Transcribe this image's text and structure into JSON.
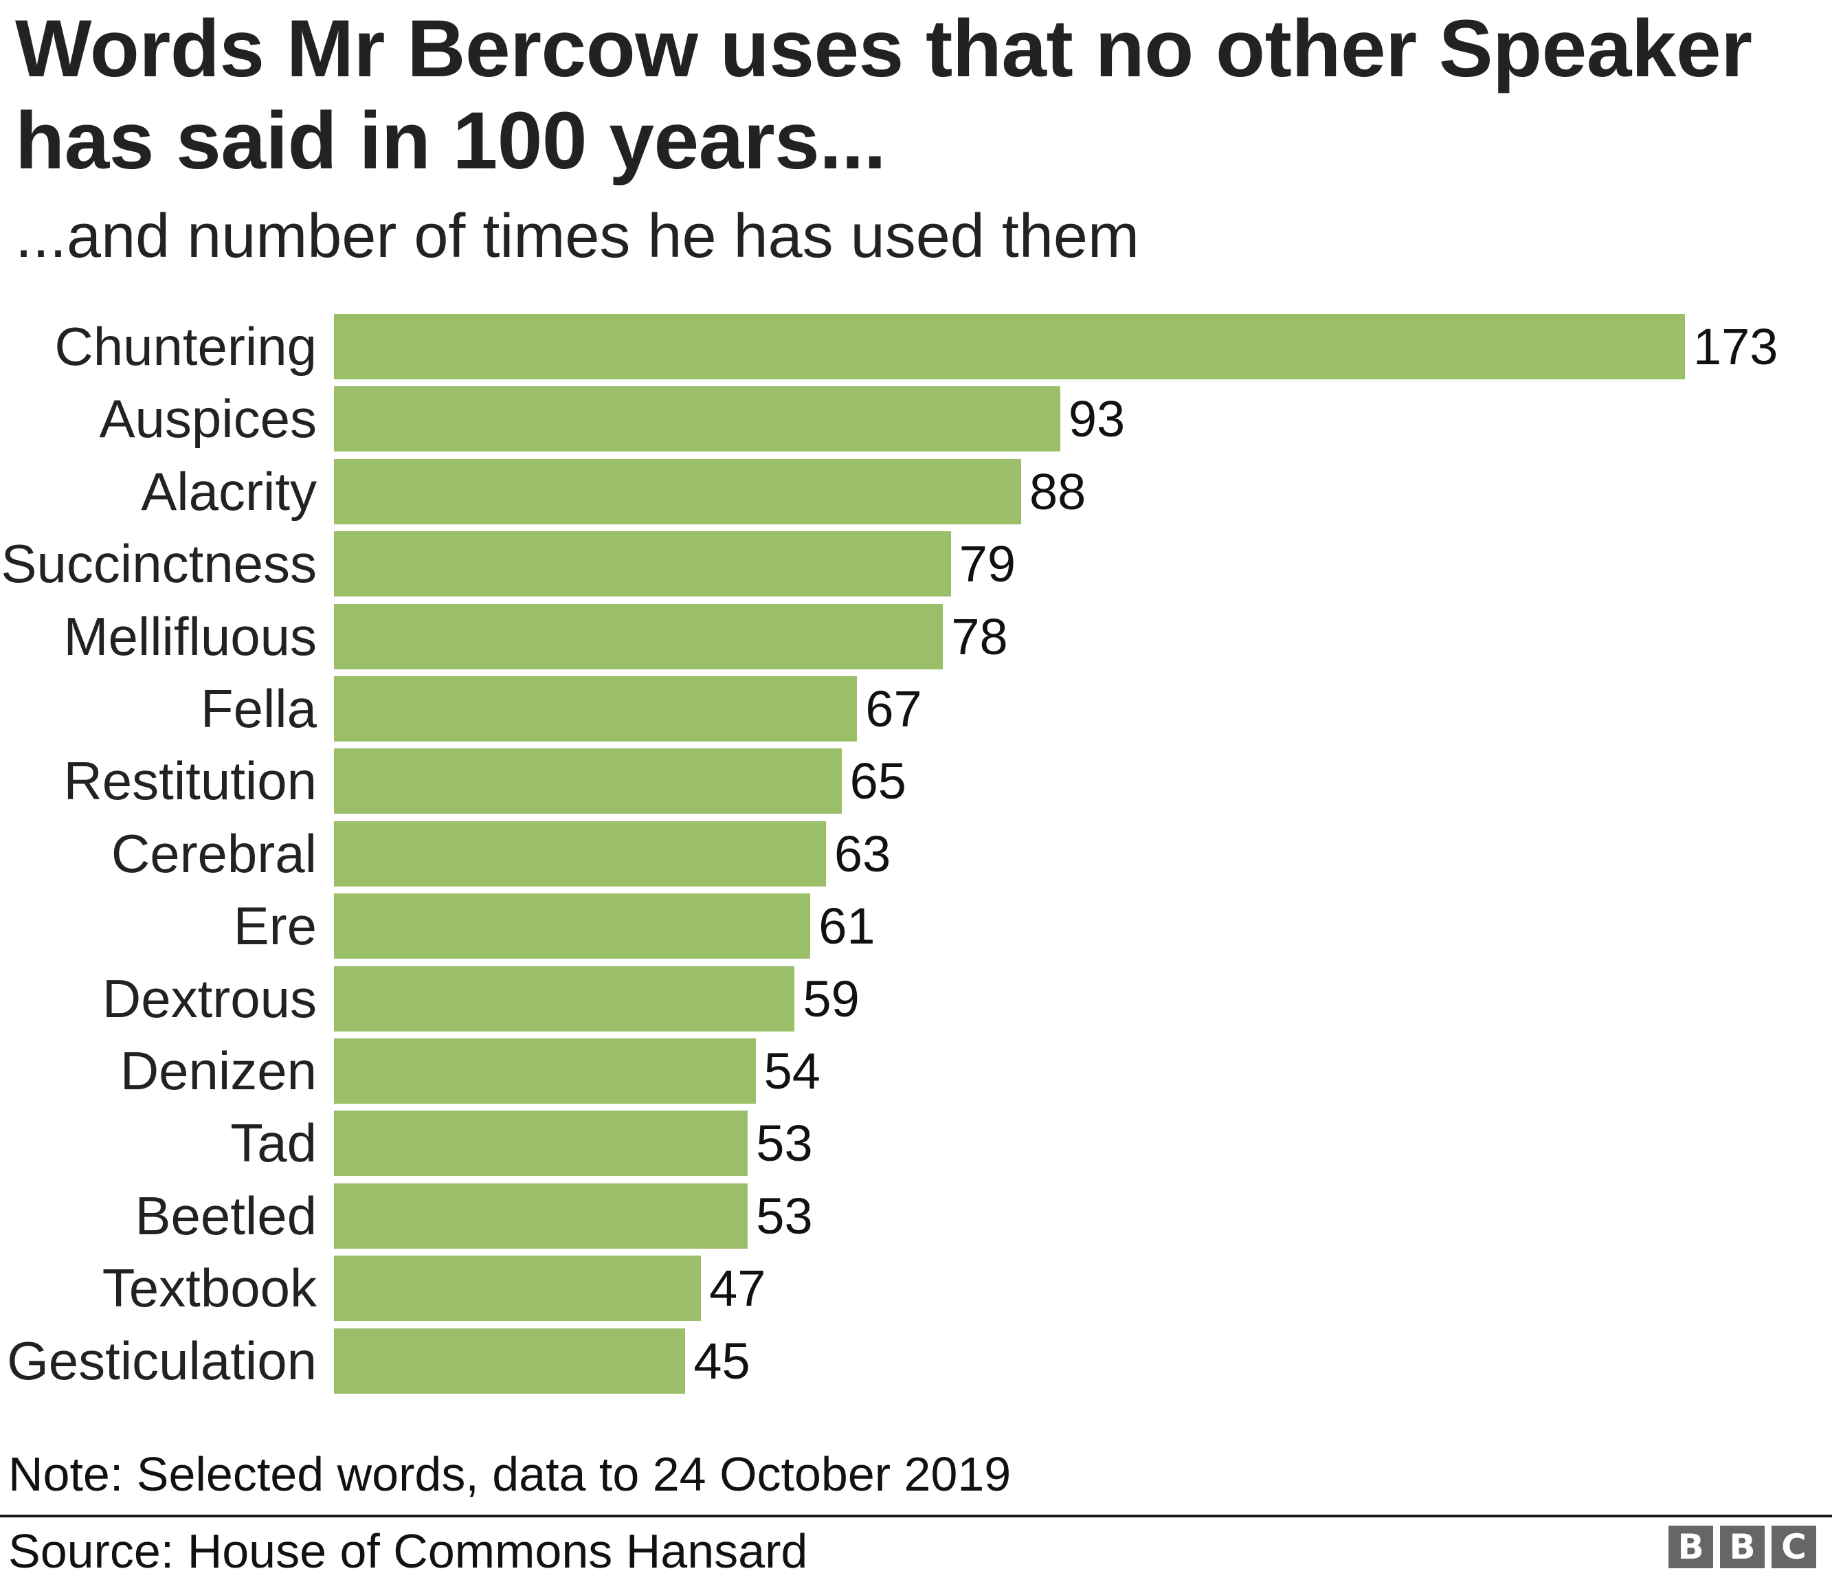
{
  "header": {
    "title": "Words Mr Bercow uses that no other Speaker has said in 100 years...",
    "subtitle": "...and number of times he has used them"
  },
  "footer": {
    "note": "Note: Selected words, data to 24 October 2019",
    "source": "Source: House of Commons Hansard",
    "logo_letters": [
      "B",
      "B",
      "C"
    ]
  },
  "colors": {
    "bar": "#9bbe68",
    "text": "#222222",
    "logo": "#666666"
  },
  "chart_data": {
    "type": "bar",
    "orientation": "horizontal",
    "title": "Words Mr Bercow uses that no other Speaker has said in 100 years...",
    "subtitle": "...and number of times he has used them",
    "xlabel": "",
    "ylabel": "",
    "categories": [
      "Chuntering",
      "Auspices",
      "Alacrity",
      "Succinctness",
      "Mellifluous",
      "Fella",
      "Restitution",
      "Cerebral",
      "Ere",
      "Dextrous",
      "Denizen",
      "Tad",
      "Beetled",
      "Textbook",
      "Gesticulation"
    ],
    "values": [
      173,
      93,
      88,
      79,
      78,
      67,
      65,
      63,
      61,
      59,
      54,
      53,
      53,
      47,
      45
    ],
    "data_labels": true,
    "grid": false,
    "legend": null,
    "xlim": [
      0,
      173
    ],
    "note": "Note: Selected words, data to 24 October 2019",
    "source": "Source: House of Commons Hansard"
  }
}
